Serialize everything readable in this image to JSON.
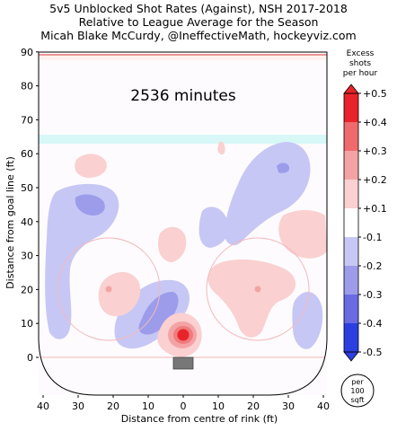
{
  "header": {
    "title_line1": "5v5 Unblocked Shot Rates (Against), NSH 2017-2018",
    "title_line2": "Relative to League Average for the Season",
    "title_line3": "Micah Blake McCurdy, @IneffectiveMath, hockeyviz.com"
  },
  "colors": {
    "excess": "#e8232a",
    "deficit": "#2b3fe0",
    "rink_line": "#d96a6a",
    "blue_line": "#a9f2f0"
  },
  "chart_data": {
    "type": "heatmap",
    "annotation": "2536 minutes",
    "xlabel": "Distance from centre of rink (ft)",
    "ylabel": "Distance from goal line (ft)",
    "xlim": [
      -40,
      40
    ],
    "ylim": [
      -10,
      90
    ],
    "x_ticks": [
      "40",
      "30",
      "20",
      "10",
      "0",
      "10",
      "20",
      "30",
      "40"
    ],
    "y_ticks": [
      "0",
      "10",
      "20",
      "30",
      "40",
      "50",
      "60",
      "70",
      "80",
      "90"
    ],
    "colorbar": {
      "label": [
        "Excess",
        "shots",
        "per hour"
      ],
      "ticks": [
        "+0.5",
        "+0.4",
        "+0.3",
        "+0.2",
        "+0.1",
        "-0.1",
        "-0.2",
        "-0.3",
        "-0.4",
        "-0.5"
      ],
      "range": [
        -0.5,
        0.5
      ]
    },
    "unit_badge": [
      "per",
      "100",
      "sqft"
    ],
    "regions": [
      {
        "sign": "excess",
        "level": 0.5,
        "x": 0,
        "y": 6
      },
      {
        "sign": "excess",
        "level": 0.3,
        "x": 0,
        "y": 7
      },
      {
        "sign": "excess",
        "level": 0.2,
        "x": -22,
        "y": 20
      },
      {
        "sign": "excess",
        "level": 0.2,
        "x": 22,
        "y": 20
      },
      {
        "sign": "excess",
        "level": 0.1,
        "x": -27,
        "y": 56
      },
      {
        "sign": "excess",
        "level": 0.1,
        "x": 42,
        "y": 40
      },
      {
        "sign": "deficit",
        "level": -0.3,
        "x": -30,
        "y": 45
      },
      {
        "sign": "deficit",
        "level": -0.3,
        "x": -6,
        "y": 18
      },
      {
        "sign": "deficit",
        "level": -0.2,
        "x": 29,
        "y": 56
      },
      {
        "sign": "deficit",
        "level": -0.2,
        "x": 36,
        "y": 15
      }
    ]
  }
}
